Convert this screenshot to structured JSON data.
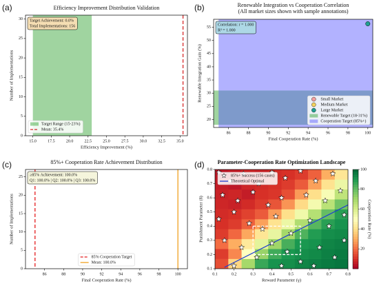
{
  "chart_data": [
    {
      "type": "histogram",
      "label": "(a)",
      "title": "Efficiency Improvement Distribution Validation",
      "xlabel": "Efficiency Improvement (%)",
      "ylabel": "Number of Implementations",
      "xlim": [
        14.0,
        36.0
      ],
      "ylim": [
        0,
        31
      ],
      "xticks": [
        {
          "value": 15,
          "label": "15.0"
        },
        {
          "value": 17.5,
          "label": "17.5"
        },
        {
          "value": 20,
          "label": "20.0"
        },
        {
          "value": 22.5,
          "label": "22.5"
        },
        {
          "value": 25,
          "label": "25.0"
        },
        {
          "value": 27.5,
          "label": "27.5"
        },
        {
          "value": 30,
          "label": "30.0"
        },
        {
          "value": 32.5,
          "label": "32.5"
        },
        {
          "value": 35,
          "label": "35.0"
        }
      ],
      "yticks": [
        0,
        5,
        10,
        15,
        20,
        25,
        30
      ],
      "spans": [
        {
          "name": "Target Range (15-23%)",
          "axis": "x",
          "range": [
            15,
            23
          ],
          "color": "#2ca02c"
        }
      ],
      "vlines": [
        {
          "name": "Mean: 35.4%",
          "value": 35.4,
          "color": "#d62728",
          "style": "dashed"
        }
      ],
      "annotation": [
        "Target Achievement: 0.0%",
        "Total Implementations: 156"
      ],
      "annotation_color": "#f5deb3",
      "legend": "lower left"
    },
    {
      "type": "scatter",
      "label": "(b)",
      "title": "Renewable Integration vs Cooperation Correlation",
      "subtitle": "(All market sizes shown with sample annotations)",
      "xlabel": "Final Cooperation Rate (%)",
      "ylabel": "Renewable Integration Gain (%)",
      "xlim": [
        84.5,
        100.5
      ],
      "ylim": [
        17,
        58
      ],
      "xticks": [
        86,
        88,
        90,
        92,
        94,
        96,
        98,
        100
      ],
      "yticks": [
        20,
        25,
        30,
        35,
        40,
        45,
        50,
        55
      ],
      "series": [
        {
          "name": "Small Market",
          "color": "#f4a0a0",
          "x": [],
          "y": []
        },
        {
          "name": "Medium Market",
          "color": "#f5d35e",
          "x": [],
          "y": []
        },
        {
          "name": "Large Market",
          "color": "#20a090",
          "x": [
            100
          ],
          "y": [
            56.3
          ]
        }
      ],
      "spans": [
        {
          "name": "Renewable Target (18-31%)",
          "axis": "y",
          "range": [
            18,
            31
          ],
          "color": "#2ca02c"
        },
        {
          "name": "Cooperation Target (85%+)",
          "axis": "x",
          "range": [
            85,
            101
          ],
          "color": "#5555ff"
        }
      ],
      "annotation": [
        "Correlation: r = 1.000",
        "R² = 1.000"
      ],
      "annotation_color": "#add8e6",
      "legend": "lower right"
    },
    {
      "type": "histogram",
      "label": "(c)",
      "title": "85%+ Cooperation Rate Achievement Distribution",
      "xlabel": "Final Cooperation Rate (%)",
      "ylabel": "Number of Implementations",
      "xlim": [
        84,
        101
      ],
      "ylim": [
        0,
        27
      ],
      "xticks": [
        86,
        88,
        90,
        92,
        94,
        96,
        98,
        100
      ],
      "yticks": [
        0,
        5,
        10,
        15,
        20,
        25
      ],
      "vlines": [
        {
          "name": "85% Cooperation Target",
          "value": 85,
          "color": "#e41a1c",
          "style": "dashed"
        },
        {
          "name": "Mean: 100.0%",
          "value": 100,
          "color": "#f0a020",
          "style": "solid"
        }
      ],
      "annotation": [
        "≥85% Achievement: 100.0%",
        "Q1: 100.0% | Q2: 100.0% | Q3: 100.0%"
      ],
      "annotation_color": "#f5f5dc",
      "legend": "lower center"
    },
    {
      "type": "heatmap",
      "label": "(d)",
      "title": "Parameter-Cooperation Rate Optimization Landscape",
      "xlabel": "Reward Parameter (γ)",
      "ylabel": "Punishment Parameter (δ)",
      "xlim": [
        0.1,
        0.8
      ],
      "ylim": [
        0.1,
        0.8
      ],
      "xticks": [
        0.1,
        0.2,
        0.3,
        0.4,
        0.5,
        0.6,
        0.7,
        0.8
      ],
      "yticks": [
        0.1,
        0.2,
        0.3,
        0.4,
        0.5,
        0.6,
        0.7,
        0.8
      ],
      "z": [
        [
          15,
          38,
          70,
          86,
          91,
          92,
          94,
          95,
          96,
          97
        ],
        [
          12,
          24,
          50,
          72,
          85,
          90,
          92,
          93,
          95,
          96
        ],
        [
          20,
          30,
          43,
          57,
          71,
          84,
          90,
          91,
          94,
          95
        ],
        [
          12,
          19,
          29,
          42,
          56,
          70,
          83,
          89,
          92,
          93
        ],
        [
          10,
          12,
          18,
          28,
          41,
          55,
          68,
          82,
          88,
          91
        ],
        [
          9,
          10,
          13,
          17,
          27,
          40,
          54,
          67,
          80,
          88
        ],
        [
          8,
          7,
          9,
          12,
          16,
          26,
          39,
          53,
          66,
          78
        ],
        [
          7,
          8,
          6,
          10,
          11,
          15,
          27,
          40,
          52,
          65
        ],
        [
          6,
          5,
          8,
          9,
          10,
          12,
          17,
          28,
          41,
          55
        ],
        [
          5,
          6,
          8,
          7,
          9,
          10,
          12,
          18,
          30,
          42
        ]
      ],
      "clim": [
        0,
        100
      ],
      "cticks": [
        20,
        40,
        60,
        80,
        100
      ],
      "clabel": "Cooperation Rate (%)",
      "colormap": [
        "#a50026",
        "#d73027",
        "#f46d43",
        "#fdae61",
        "#fee08b",
        "#ffffbf",
        "#d9ef8b",
        "#a6d96a",
        "#66bd63",
        "#1a9850",
        "#006837"
      ],
      "stars": {
        "name": "85%+ Success (156 cases)",
        "x": [
          0.12,
          0.18,
          0.25,
          0.33,
          0.4,
          0.47,
          0.55,
          0.63,
          0.72,
          0.14,
          0.22,
          0.3,
          0.38,
          0.45,
          0.58,
          0.68,
          0.76,
          0.12,
          0.2,
          0.28,
          0.35,
          0.42,
          0.5,
          0.6,
          0.7,
          0.78,
          0.15,
          0.24,
          0.32,
          0.4,
          0.48,
          0.55,
          0.65,
          0.73,
          0.2,
          0.45,
          0.62,
          0.78
        ],
        "y": [
          0.78,
          0.72,
          0.77,
          0.7,
          0.78,
          0.74,
          0.79,
          0.72,
          0.77,
          0.62,
          0.58,
          0.64,
          0.55,
          0.6,
          0.62,
          0.58,
          0.65,
          0.45,
          0.5,
          0.42,
          0.38,
          0.47,
          0.35,
          0.44,
          0.4,
          0.48,
          0.3,
          0.25,
          0.18,
          0.28,
          0.22,
          0.15,
          0.25,
          0.18,
          0.12,
          0.12,
          0.12,
          0.3
        ]
      },
      "lines": [
        {
          "name": "Theoretical Optimal",
          "color": "#1f3fd0",
          "x": [
            0.15,
            0.8
          ],
          "y": [
            0.11,
            0.55
          ]
        }
      ],
      "region": {
        "x": [
          0.3,
          0.55
        ],
        "y": [
          0.2,
          0.4
        ]
      },
      "legend": "upper left"
    }
  ]
}
